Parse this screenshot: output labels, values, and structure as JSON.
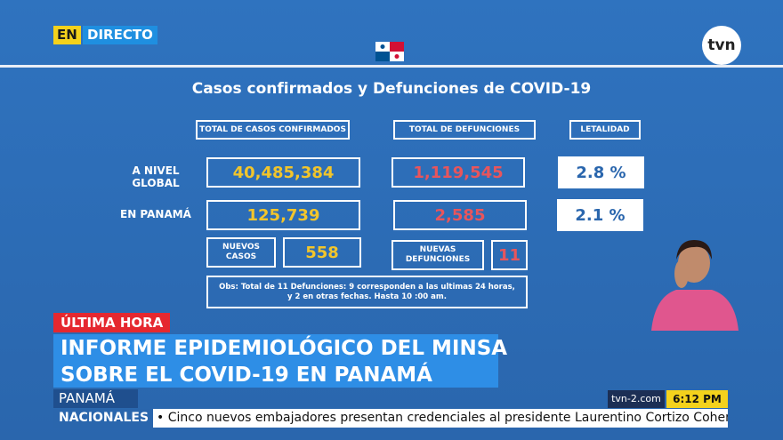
{
  "live_badge": {
    "en": "EN",
    "directo": "DIRECTO"
  },
  "logo": "tvn",
  "panel": {
    "title": "Casos confirmados y Defunciones de COVID-19",
    "headers": [
      "TOTAL DE CASOS CONFIRMADOS",
      "TOTAL DE DEFUNCIONES",
      "LETALIDAD"
    ],
    "rows": [
      {
        "label": "A NIVEL GLOBAL",
        "cases": "40,485,384",
        "deaths": "1,119,545",
        "lethality": "2.8 %"
      },
      {
        "label": "EN PANAMÁ",
        "cases": "125,739",
        "deaths": "2,585",
        "lethality": "2.1 %"
      }
    ],
    "new_cases": {
      "label": "NUEVOS CASOS",
      "value": "558"
    },
    "new_deaths": {
      "label": "NUEVAS DEFUNCIONES",
      "value": "11"
    },
    "note": "Obs: Total de 11  Defunciones: 9 corresponden a las ultimas 24 horas, y 2 en otras fechas.     Hasta 10 :00 am."
  },
  "lower_third": {
    "tag": "ÚLTIMA HORA",
    "headline": [
      "INFORME EPIDEMIOLÓGICO DEL MINSA",
      "SOBRE EL COVID-19 EN PANAMÁ"
    ],
    "location": "PANAMÁ",
    "site": "tvn-2.com",
    "time": "6:12 PM",
    "section": "NACIONALES",
    "ticker": "• Cinco nuevos embajadores  presentan credenciales al presidente Laurentino Cortizo Cohen"
  }
}
